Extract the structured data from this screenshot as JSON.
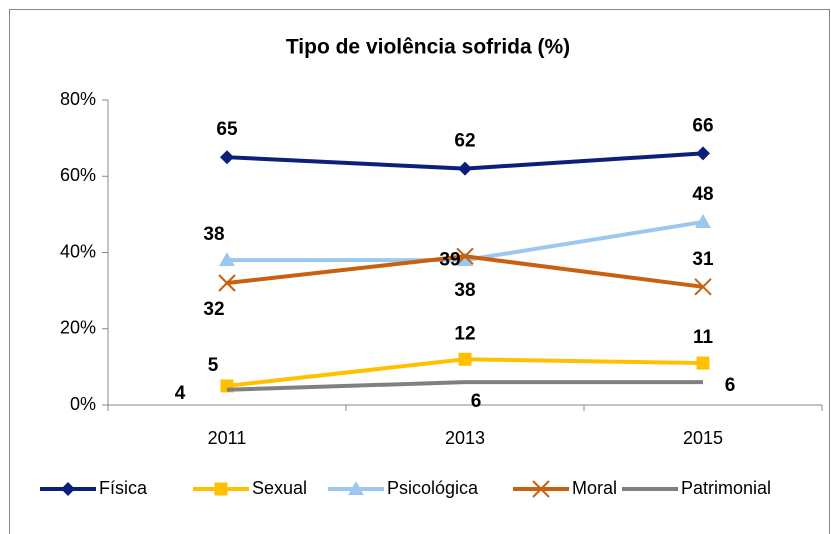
{
  "chart_data": {
    "type": "line",
    "title": "Tipo de violência sofrida (%)",
    "categories": [
      "2011",
      "2013",
      "2015"
    ],
    "series": [
      {
        "name": "Física",
        "color": "#0c1f7a",
        "marker": "diamond",
        "values": [
          65,
          62,
          66
        ]
      },
      {
        "name": "Sexual",
        "color": "#ffc000",
        "marker": "square",
        "values": [
          5,
          12,
          11
        ]
      },
      {
        "name": "Psicológica",
        "color": "#9cc8f0",
        "marker": "triangle",
        "values": [
          38,
          38,
          48
        ]
      },
      {
        "name": "Moral",
        "color": "#c8600f",
        "marker": "x",
        "values": [
          32,
          39,
          31
        ]
      },
      {
        "name": "Patrimonial",
        "color": "#808080",
        "marker": "none",
        "values": [
          4,
          6,
          6
        ]
      }
    ],
    "ylim": [
      0,
      80
    ],
    "yticks": [
      {
        "value": 0,
        "label": "0%"
      },
      {
        "value": 20,
        "label": "20%"
      },
      {
        "value": 40,
        "label": "40%"
      },
      {
        "value": 60,
        "label": "60%"
      },
      {
        "value": 80,
        "label": "80%"
      }
    ],
    "grid": false,
    "legend": "bottom"
  }
}
